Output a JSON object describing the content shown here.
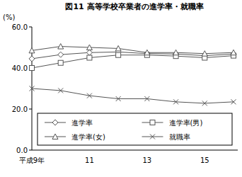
{
  "chart_data": {
    "type": "line",
    "title": "図11 高等学校卒業者の進学率・就職率",
    "y_label": "(%)",
    "categories": [
      "平成9年",
      null,
      "11",
      null,
      "13",
      null,
      "15",
      null
    ],
    "series": [
      {
        "name": "進学率",
        "color": "#555555",
        "marker": "diamond",
        "values": [
          44.5,
          46.5,
          47.5,
          47.8,
          47.0,
          46.8,
          46.0,
          46.8
        ]
      },
      {
        "name": "進学率(男)",
        "color": "#555555",
        "marker": "square",
        "values": [
          40.0,
          42.5,
          45.0,
          46.3,
          46.3,
          45.8,
          45.0,
          46.0
        ]
      },
      {
        "name": "進学率(女)",
        "color": "#555555",
        "marker": "triangle",
        "values": [
          48.5,
          50.5,
          50.0,
          49.5,
          47.5,
          47.5,
          47.0,
          47.5
        ]
      },
      {
        "name": "就職率",
        "color": "#555555",
        "marker": "x",
        "values": [
          30.0,
          29.0,
          26.5,
          25.0,
          25.0,
          23.5,
          22.8,
          23.5
        ]
      }
    ],
    "ylim": [
      0,
      60
    ],
    "yticks": [
      {
        "value": 0,
        "label": "0.0"
      },
      {
        "value": 20,
        "label": "20.0"
      },
      {
        "value": 40,
        "label": "40.0"
      },
      {
        "value": 60,
        "label": "60.0"
      }
    ],
    "grid": false,
    "legend": "bottom"
  }
}
